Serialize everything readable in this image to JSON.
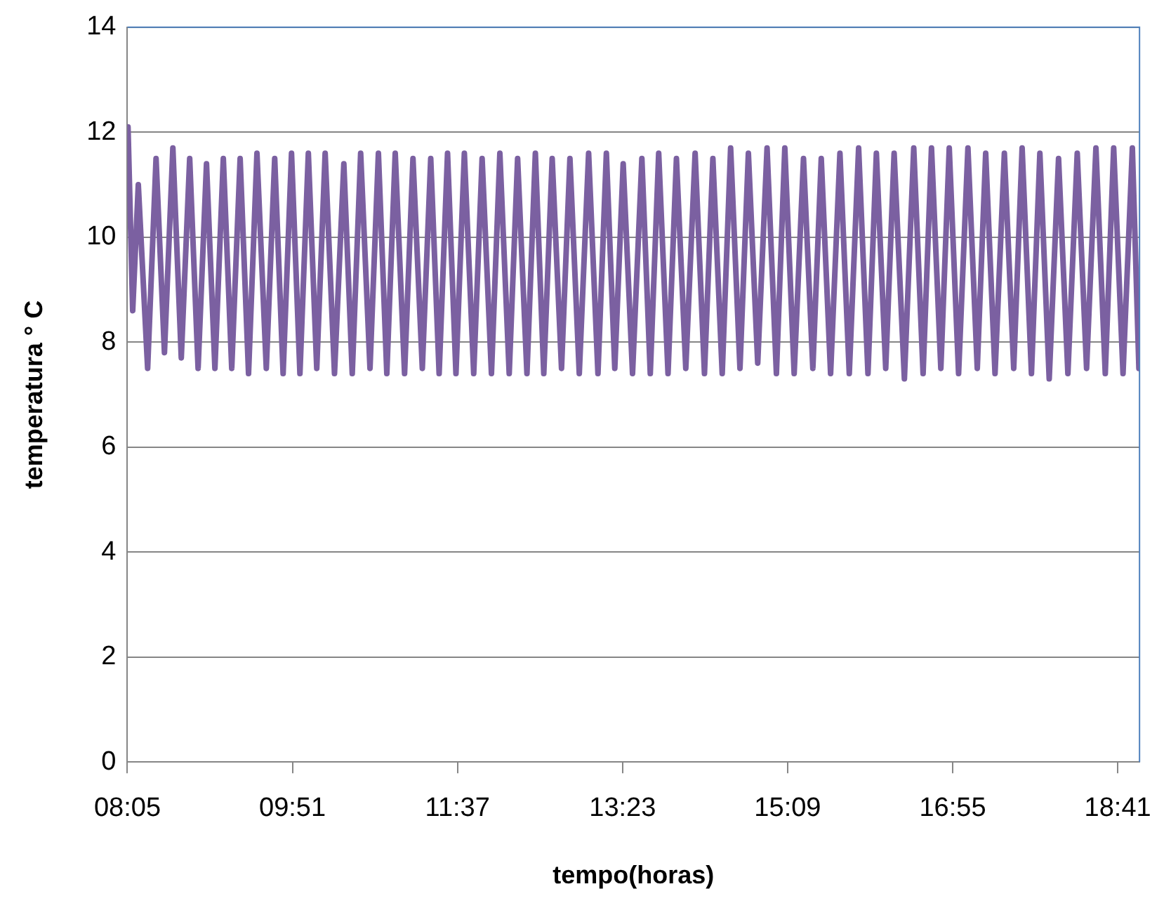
{
  "chart_data": {
    "type": "line",
    "xlabel": "tempo(horas)",
    "ylabel": "temperatura ° C",
    "grid": "y",
    "legend": false,
    "marker": "none",
    "line_style": "solid",
    "xlim": [
      8.0833,
      18.9167
    ],
    "xticks": [
      {
        "value": 8.0833,
        "label": "08:05"
      },
      {
        "value": 9.85,
        "label": "09:51"
      },
      {
        "value": 11.6167,
        "label": "11:37"
      },
      {
        "value": 13.3833,
        "label": "13:23"
      },
      {
        "value": 15.15,
        "label": "15:09"
      },
      {
        "value": 16.9167,
        "label": "16:55"
      },
      {
        "value": 18.6833,
        "label": "18:41"
      }
    ],
    "ylim": [
      0,
      14
    ],
    "yticks": [
      0,
      2,
      4,
      6,
      8,
      10,
      12,
      14
    ],
    "series": [
      {
        "color": "#7b60a1",
        "x": [
          8.09,
          8.14,
          8.2,
          8.3,
          8.39,
          8.48,
          8.57,
          8.66,
          8.75,
          8.84,
          8.93,
          9.02,
          9.11,
          9.2,
          9.29,
          9.38,
          9.47,
          9.57,
          9.66,
          9.75,
          9.84,
          9.93,
          10.02,
          10.11,
          10.2,
          10.3,
          10.4,
          10.49,
          10.58,
          10.68,
          10.77,
          10.86,
          10.95,
          11.05,
          11.14,
          11.24,
          11.33,
          11.42,
          11.51,
          11.6,
          11.69,
          11.79,
          11.88,
          11.98,
          12.07,
          12.17,
          12.26,
          12.36,
          12.45,
          12.54,
          12.63,
          12.73,
          12.82,
          12.92,
          13.02,
          13.12,
          13.21,
          13.3,
          13.39,
          13.49,
          13.59,
          13.68,
          13.77,
          13.87,
          13.96,
          14.06,
          14.16,
          14.26,
          14.35,
          14.45,
          14.54,
          14.64,
          14.73,
          14.83,
          14.93,
          15.03,
          15.12,
          15.22,
          15.32,
          15.42,
          15.51,
          15.61,
          15.71,
          15.81,
          15.91,
          16.01,
          16.1,
          16.2,
          16.29,
          16.4,
          16.5,
          16.6,
          16.69,
          16.79,
          16.88,
          16.98,
          17.08,
          17.18,
          17.27,
          17.37,
          17.47,
          17.57,
          17.66,
          17.76,
          17.85,
          17.95,
          18.05,
          18.15,
          18.25,
          18.35,
          18.45,
          18.55,
          18.64,
          18.74,
          18.84,
          18.91
        ],
        "values": [
          12.1,
          8.6,
          11.0,
          7.5,
          11.5,
          7.8,
          11.7,
          7.7,
          11.5,
          7.5,
          11.4,
          7.5,
          11.5,
          7.5,
          11.5,
          7.4,
          11.6,
          7.5,
          11.5,
          7.4,
          11.6,
          7.4,
          11.6,
          7.5,
          11.6,
          7.4,
          11.4,
          7.4,
          11.6,
          7.5,
          11.6,
          7.4,
          11.6,
          7.4,
          11.5,
          7.5,
          11.5,
          7.4,
          11.6,
          7.4,
          11.6,
          7.4,
          11.5,
          7.4,
          11.6,
          7.4,
          11.5,
          7.4,
          11.6,
          7.4,
          11.5,
          7.5,
          11.5,
          7.4,
          11.6,
          7.4,
          11.6,
          7.5,
          11.4,
          7.4,
          11.5,
          7.4,
          11.6,
          7.4,
          11.5,
          7.5,
          11.6,
          7.4,
          11.5,
          7.4,
          11.7,
          7.5,
          11.6,
          7.6,
          11.7,
          7.4,
          11.7,
          7.4,
          11.5,
          7.5,
          11.5,
          7.4,
          11.6,
          7.4,
          11.7,
          7.4,
          11.6,
          7.5,
          11.6,
          7.3,
          11.7,
          7.4,
          11.7,
          7.5,
          11.7,
          7.4,
          11.7,
          7.5,
          11.6,
          7.4,
          11.6,
          7.5,
          11.7,
          7.4,
          11.6,
          7.3,
          11.5,
          7.4,
          11.6,
          7.5,
          11.7,
          7.4,
          11.7,
          7.4,
          11.7,
          7.5
        ]
      }
    ]
  }
}
